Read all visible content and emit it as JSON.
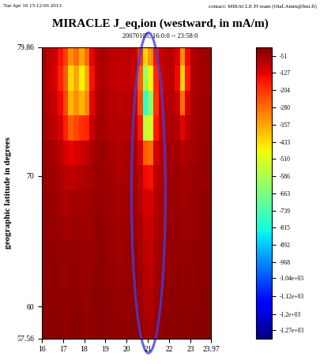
{
  "chart_data": {
    "type": "heatmap",
    "header_left": "Tue Apr 16 15:12:06 2013",
    "header_right": "contact: MIRACLE PI team (Olaf.Amm@fmi.fi)",
    "title": "MIRACLE J_eq,ion (westward, in mA/m)",
    "subtitle": "20070105, 16:0:0 -- 23:58:0",
    "y_label": "geographic latitude in degrees",
    "xlim": [
      16,
      23.97
    ],
    "xticks": [
      16,
      17,
      18,
      19,
      20,
      21,
      22,
      23,
      23.97
    ],
    "ylim": [
      57.56,
      79.86
    ],
    "yticks": [
      57.56,
      60,
      70,
      79.86
    ],
    "x": [
      16.125,
      16.375,
      16.625,
      16.875,
      17.125,
      17.375,
      17.625,
      17.875,
      18.125,
      18.375,
      18.625,
      18.875,
      19.125,
      19.375,
      19.625,
      19.875,
      20.125,
      20.375,
      20.625,
      20.875,
      21.125,
      21.375,
      21.625,
      21.875,
      22.125,
      22.375,
      22.625,
      22.875,
      23.125,
      23.375,
      23.625,
      23.875
    ],
    "y": [
      58.5,
      60.4,
      62.3,
      64.2,
      66.1,
      68.0,
      69.9,
      71.8,
      73.7,
      75.6,
      77.5,
      79.4
    ],
    "cells": [
      [
        -25,
        -30,
        -28,
        -32,
        -35,
        -30,
        -28,
        -33,
        -36,
        -30,
        -27,
        -25,
        -30,
        -34,
        -38,
        -35,
        -32,
        -30,
        -40,
        -55,
        -60,
        -45,
        -38,
        -33,
        -30,
        -28,
        -30,
        -32,
        -29,
        -27,
        -26,
        -25
      ],
      [
        -28,
        -32,
        -30,
        -35,
        -38,
        -34,
        -30,
        -36,
        -40,
        -33,
        -30,
        -28,
        -33,
        -37,
        -42,
        -40,
        -36,
        -34,
        -45,
        -65,
        -70,
        -50,
        -42,
        -36,
        -33,
        -30,
        -33,
        -35,
        -31,
        -29,
        -28,
        -27
      ],
      [
        -30,
        -35,
        -33,
        -38,
        -42,
        -38,
        -34,
        -40,
        -44,
        -36,
        -32,
        -30,
        -36,
        -40,
        -45,
        -44,
        -40,
        -38,
        -50,
        -75,
        -80,
        -55,
        -45,
        -40,
        -36,
        -33,
        -36,
        -38,
        -34,
        -31,
        -30,
        -29
      ],
      [
        -32,
        -38,
        -36,
        -42,
        -46,
        -42,
        -38,
        -44,
        -48,
        -40,
        -35,
        -33,
        -40,
        -44,
        -50,
        -48,
        -44,
        -42,
        -56,
        -85,
        -90,
        -60,
        -50,
        -44,
        -40,
        -36,
        -40,
        -42,
        -37,
        -34,
        -32,
        -31
      ],
      [
        -35,
        -42,
        -40,
        -48,
        -55,
        -50,
        -45,
        -50,
        -52,
        -44,
        -38,
        -36,
        -44,
        -48,
        -55,
        -52,
        -48,
        -46,
        -62,
        -95,
        -100,
        -66,
        -55,
        -48,
        -44,
        -40,
        -44,
        -46,
        -40,
        -37,
        -35,
        -33
      ],
      [
        -38,
        -46,
        -45,
        -55,
        -65,
        -62,
        -55,
        -58,
        -58,
        -48,
        -42,
        -40,
        -48,
        -52,
        -60,
        -58,
        -52,
        -50,
        -70,
        -110,
        -115,
        -72,
        -60,
        -52,
        -48,
        -44,
        -50,
        -50,
        -44,
        -40,
        -38,
        -36
      ],
      [
        -40,
        -50,
        -52,
        -65,
        -80,
        -85,
        -75,
        -70,
        -66,
        -54,
        -46,
        -44,
        -52,
        -56,
        -64,
        -62,
        -56,
        -55,
        -80,
        -140,
        -150,
        -80,
        -65,
        -56,
        -52,
        -48,
        -58,
        -55,
        -48,
        -44,
        -41,
        -39
      ],
      [
        -45,
        -58,
        -62,
        -80,
        -110,
        -130,
        -115,
        -100,
        -90,
        -65,
        -52,
        -48,
        -58,
        -62,
        -70,
        -68,
        -62,
        -62,
        -110,
        -260,
        -280,
        -110,
        -72,
        -62,
        -58,
        -56,
        -75,
        -62,
        -54,
        -48,
        -44,
        -42
      ],
      [
        -50,
        -70,
        -80,
        -110,
        -170,
        -260,
        -230,
        -200,
        -180,
        -95,
        -60,
        -55,
        -65,
        -70,
        -78,
        -75,
        -70,
        -72,
        -160,
        -560,
        -520,
        -160,
        -85,
        -70,
        -66,
        -70,
        -130,
        -80,
        -60,
        -52,
        -48,
        -45
      ],
      [
        -55,
        -80,
        -95,
        -140,
        -230,
        -380,
        -330,
        -380,
        -320,
        -130,
        -68,
        -60,
        -72,
        -78,
        -85,
        -82,
        -78,
        -85,
        -230,
        -780,
        -640,
        -200,
        -95,
        -78,
        -75,
        -95,
        -280,
        -110,
        -66,
        -56,
        -52,
        -48
      ],
      [
        -60,
        -90,
        -110,
        -170,
        -260,
        -430,
        -360,
        -460,
        -360,
        -150,
        -75,
        -65,
        -78,
        -84,
        -92,
        -90,
        -85,
        -95,
        -260,
        -620,
        -470,
        -180,
        -100,
        -84,
        -82,
        -140,
        -420,
        -160,
        -72,
        -60,
        -55,
        -52
      ],
      [
        -58,
        -85,
        -100,
        -150,
        -220,
        -330,
        -280,
        -360,
        -280,
        -130,
        -72,
        -62,
        -75,
        -80,
        -88,
        -85,
        -80,
        -90,
        -200,
        -420,
        -330,
        -150,
        -95,
        -80,
        -78,
        -120,
        -330,
        -140,
        -70,
        -58,
        -53,
        -50
      ]
    ],
    "colorbar_range": [
      -1308,
      -13
    ],
    "colorbar_ticks": [
      -51,
      -127,
      -204,
      -280,
      -357,
      -433,
      -510,
      -586,
      -663,
      -739,
      -815,
      -892,
      -968,
      {
        "value": -1040,
        "label": "-1.04e+03"
      },
      {
        "value": -1120,
        "label": "-1.12e+03"
      },
      {
        "value": -1200,
        "label": "-1.2e+03"
      },
      {
        "value": -1270,
        "label": "-1.27e+03"
      }
    ]
  }
}
